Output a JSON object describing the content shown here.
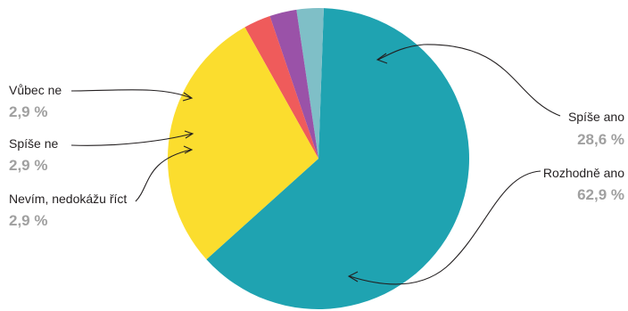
{
  "chart_data": {
    "type": "pie",
    "title": "",
    "slices": [
      {
        "label": "Rozhodně ano",
        "value": 62.9,
        "value_label": "62,9 %",
        "color": "#1fa3b1"
      },
      {
        "label": "Nevím, nedokážu říct",
        "value": 2.9,
        "value_label": "2,9 %",
        "color": "#7fbfc7"
      },
      {
        "label": "Spíše ne",
        "value": 2.9,
        "value_label": "2,9 %",
        "color": "#9a52a8"
      },
      {
        "label": "Vůbec ne",
        "value": 2.9,
        "value_label": "2,9 %",
        "color": "#ef5b5b"
      },
      {
        "label": "Spíše ano",
        "value": 28.6,
        "value_label": "28,6 %",
        "color": "#fbdd2e"
      }
    ]
  }
}
